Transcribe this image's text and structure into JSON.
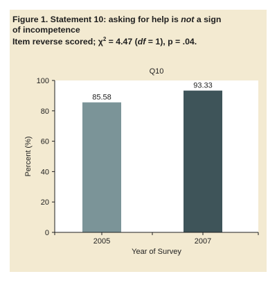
{
  "caption": {
    "line1_pre": "Figure 1. Statement 10: asking for help is ",
    "line1_em": "not",
    "line1_post": " a sign",
    "line2": "of incompetence",
    "line3_pre": "Item reverse scored; χ",
    "line3_sup": "2",
    "line3_mid": " = 4.47 (",
    "line3_em": "df",
    "line3_post": " = 1), p = .04."
  },
  "colors": {
    "panel_bg": "#f3ead1",
    "plot_bg": "#ffffff",
    "bar_2005": "#7b9498",
    "bar_2007": "#3e5459"
  },
  "chart_data": {
    "type": "bar",
    "title": "Q10",
    "xlabel": "Year of Survey",
    "ylabel": "Percent (%)",
    "categories": [
      "2005",
      "2007"
    ],
    "values": [
      85.58,
      93.33
    ],
    "value_labels": [
      "85.58",
      "93.33"
    ],
    "ylim": [
      0,
      100
    ],
    "yticks": [
      "0",
      "20",
      "40",
      "60",
      "80",
      "100"
    ],
    "grid": false,
    "legend": "none"
  }
}
